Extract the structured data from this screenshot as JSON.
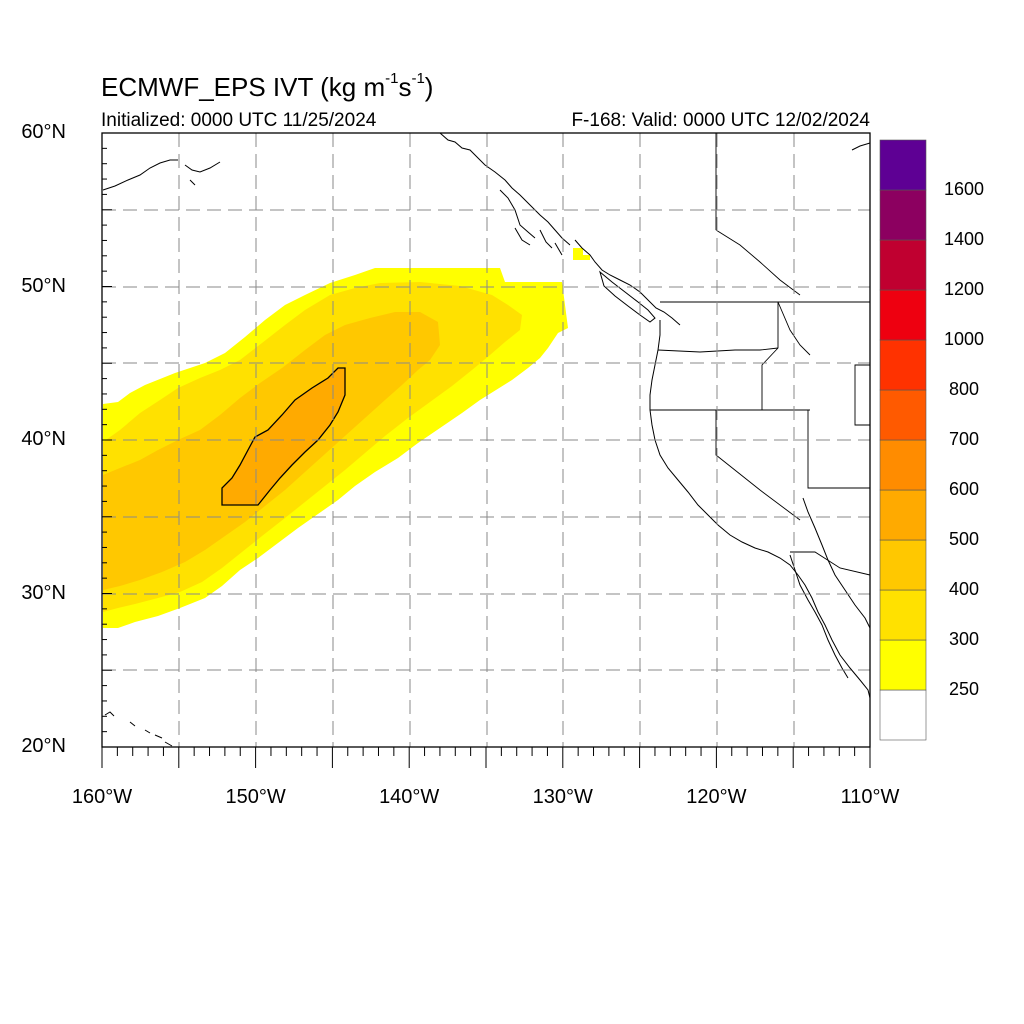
{
  "title": {
    "main": "ECMWF_EPS IVT (kg m",
    "sup1": "-1",
    "mid": "s",
    "sup2": "-1",
    "end": ")"
  },
  "subtitle_left": "Initialized: 0000 UTC 11/25/2024",
  "subtitle_right": "F-168: Valid: 0000 UTC 12/02/2024",
  "map_data": {
    "projection": "cylindrical equidistant",
    "lon_range": [
      -160,
      -110
    ],
    "lat_range": [
      20,
      60
    ],
    "grid": "dashed",
    "lat_ticks": [
      {
        "value": 60,
        "label": "60°N"
      },
      {
        "value": 50,
        "label": "50°N"
      },
      {
        "value": 40,
        "label": "40°N"
      },
      {
        "value": 30,
        "label": "30°N"
      },
      {
        "value": 20,
        "label": "20°N"
      }
    ],
    "lon_ticks": [
      {
        "value": -160,
        "label": "160°W"
      },
      {
        "value": -150,
        "label": "150°W"
      },
      {
        "value": -140,
        "label": "140°W"
      },
      {
        "value": -130,
        "label": "130°W"
      },
      {
        "value": -120,
        "label": "120°W"
      },
      {
        "value": -110,
        "label": "110°W"
      }
    ],
    "colorbar": {
      "colors": [
        "#ffffff",
        "#ffff00",
        "#ffe100",
        "#ffc800",
        "#ffaa00",
        "#ff8c00",
        "#ff5a00",
        "#ff3200",
        "#ee0010",
        "#c00030",
        "#8c0060",
        "#5e0094"
      ],
      "labels": [
        "250",
        "300",
        "400",
        "500",
        "600",
        "700",
        "800",
        "1000",
        "1200",
        "1400",
        "1600"
      ]
    },
    "ivt_regions": [
      {
        "level": "250-300",
        "color": "#ffff00"
      },
      {
        "level": "300-400",
        "color": "#ffe100"
      },
      {
        "level": "400-500",
        "color": "#ffc800"
      },
      {
        "level": "500-600",
        "color": "#ffaa00"
      }
    ],
    "contour_outline_level": 500
  }
}
